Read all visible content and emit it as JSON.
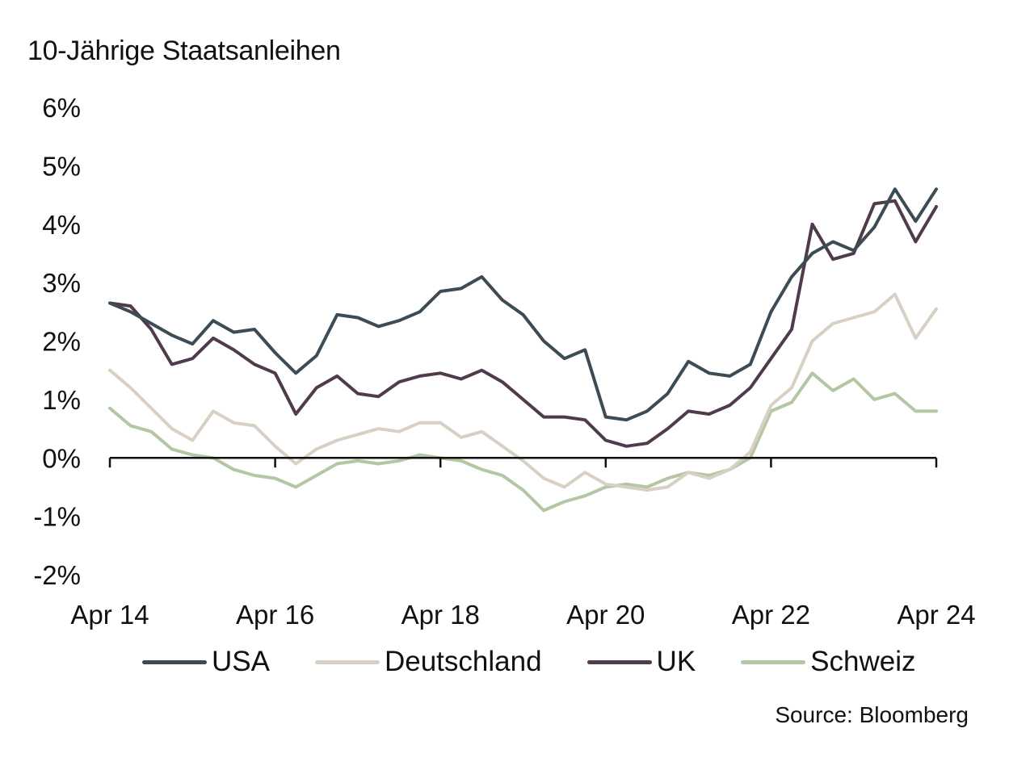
{
  "chart_data": {
    "type": "line",
    "title": "10-Jährige Staatsanleihen",
    "xlabel": "",
    "ylabel": "",
    "source": "Source: Bloomberg",
    "x_ticks": [
      "Apr 14",
      "Apr 16",
      "Apr 18",
      "Apr 20",
      "Apr 22",
      "Apr 24"
    ],
    "y_ticks": [
      "6%",
      "5%",
      "4%",
      "3%",
      "2%",
      "1%",
      "0%",
      "-1%",
      "-2%"
    ],
    "ylim": [
      -2,
      6
    ],
    "xlim": [
      2014.25,
      2024.25
    ],
    "grid": false,
    "legend_position": "bottom",
    "x": [
      2014.25,
      2014.5,
      2014.75,
      2015.0,
      2015.25,
      2015.5,
      2015.75,
      2016.0,
      2016.25,
      2016.5,
      2016.75,
      2017.0,
      2017.25,
      2017.5,
      2017.75,
      2018.0,
      2018.25,
      2018.5,
      2018.75,
      2019.0,
      2019.25,
      2019.5,
      2019.75,
      2020.0,
      2020.25,
      2020.5,
      2020.75,
      2021.0,
      2021.25,
      2021.5,
      2021.75,
      2022.0,
      2022.25,
      2022.5,
      2022.75,
      2023.0,
      2023.25,
      2023.5,
      2023.75,
      2024.0,
      2024.25
    ],
    "series": [
      {
        "name": "USA",
        "color": "#3d4b55",
        "values": [
          2.65,
          2.5,
          2.3,
          2.1,
          1.95,
          2.35,
          2.15,
          2.2,
          1.8,
          1.45,
          1.75,
          2.45,
          2.4,
          2.25,
          2.35,
          2.5,
          2.85,
          2.9,
          3.1,
          2.7,
          2.45,
          2.0,
          1.7,
          1.85,
          0.7,
          0.65,
          0.8,
          1.1,
          1.65,
          1.45,
          1.4,
          1.6,
          2.5,
          3.1,
          3.5,
          3.7,
          3.55,
          3.95,
          4.6,
          4.05,
          4.6
        ]
      },
      {
        "name": "Deutschland",
        "color": "#d9d0c5",
        "values": [
          1.5,
          1.2,
          0.85,
          0.5,
          0.3,
          0.8,
          0.6,
          0.55,
          0.2,
          -0.1,
          0.15,
          0.3,
          0.4,
          0.5,
          0.45,
          0.6,
          0.6,
          0.35,
          0.45,
          0.2,
          -0.05,
          -0.35,
          -0.5,
          -0.25,
          -0.45,
          -0.5,
          -0.55,
          -0.5,
          -0.25,
          -0.35,
          -0.2,
          0.1,
          0.9,
          1.2,
          2.0,
          2.3,
          2.4,
          2.5,
          2.8,
          2.05,
          2.55
        ]
      },
      {
        "name": "UK",
        "color": "#4f3b4c",
        "values": [
          2.65,
          2.6,
          2.2,
          1.6,
          1.7,
          2.05,
          1.85,
          1.6,
          1.45,
          0.75,
          1.2,
          1.4,
          1.1,
          1.05,
          1.3,
          1.4,
          1.45,
          1.35,
          1.5,
          1.3,
          1.0,
          0.7,
          0.7,
          0.65,
          0.3,
          0.2,
          0.25,
          0.5,
          0.8,
          0.75,
          0.9,
          1.2,
          1.7,
          2.2,
          4.0,
          3.4,
          3.5,
          4.35,
          4.4,
          3.7,
          4.3
        ]
      },
      {
        "name": "Schweiz",
        "color": "#b4c7a5",
        "values": [
          0.85,
          0.55,
          0.45,
          0.15,
          0.05,
          0.0,
          -0.2,
          -0.3,
          -0.35,
          -0.5,
          -0.3,
          -0.1,
          -0.05,
          -0.1,
          -0.05,
          0.05,
          0.0,
          -0.05,
          -0.2,
          -0.3,
          -0.55,
          -0.9,
          -0.75,
          -0.65,
          -0.5,
          -0.45,
          -0.5,
          -0.35,
          -0.25,
          -0.3,
          -0.2,
          0.0,
          0.8,
          0.95,
          1.45,
          1.15,
          1.35,
          1.0,
          1.1,
          0.8,
          0.8
        ]
      }
    ]
  }
}
